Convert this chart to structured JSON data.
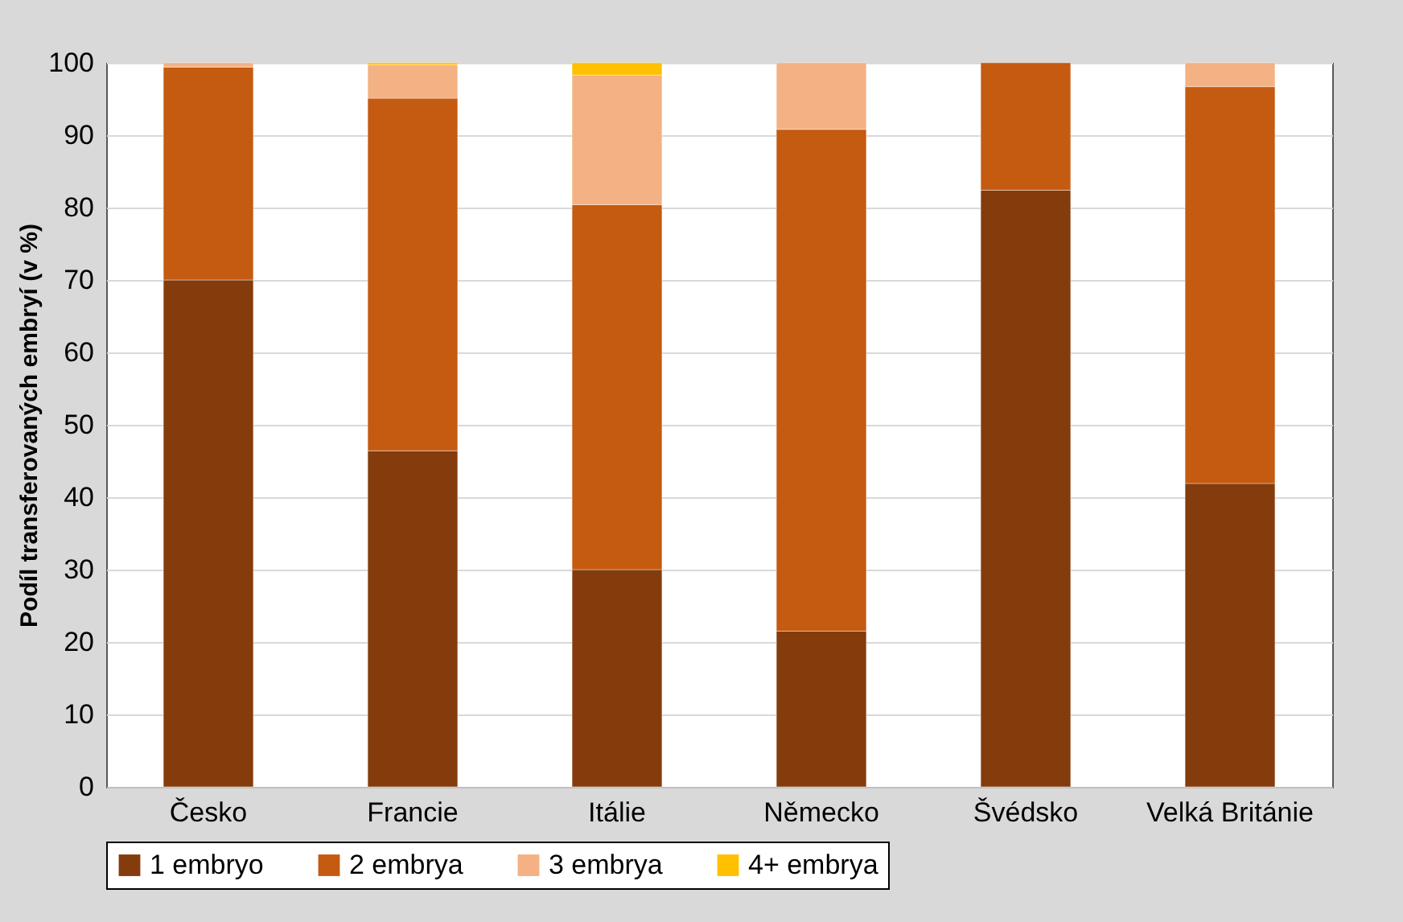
{
  "chart_data": {
    "type": "bar",
    "stacked": true,
    "ylabel": "Podíl transferovaných embryí (v %)",
    "categories": [
      "Česko",
      "Francie",
      "Itálie",
      "Německo",
      "Švédsko",
      "Velká Británie"
    ],
    "series": [
      {
        "name": "1 embryo",
        "color": "#843c0c",
        "values": [
          70,
          46.4,
          30,
          21.5,
          82.4,
          41.9
        ]
      },
      {
        "name": "2 embrya",
        "color": "#c55a11",
        "values": [
          29.4,
          48.7,
          50.4,
          69.3,
          17.6,
          54.8
        ]
      },
      {
        "name": "3 embrya",
        "color": "#f4b183",
        "values": [
          0.6,
          4.6,
          17.9,
          9.2,
          null,
          3.3
        ]
      },
      {
        "name": "4+ embrya",
        "color": "#ffc000",
        "values": [
          null,
          0.3,
          1.7,
          null,
          null,
          null
        ]
      }
    ],
    "ylim": [
      0,
      100
    ],
    "yticks": [
      0,
      10,
      20,
      30,
      40,
      50,
      60,
      70,
      80,
      90,
      100
    ],
    "grid": "y",
    "legend": "bottom"
  }
}
